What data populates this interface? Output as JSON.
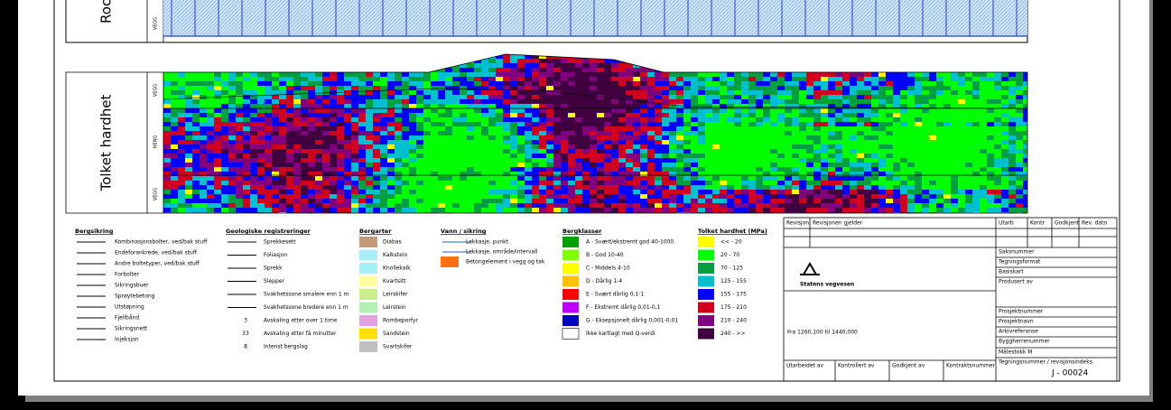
{
  "panels": [
    {
      "label": "Rock",
      "rows": [
        "VEGG"
      ]
    },
    {
      "label": "Tolket hardhet",
      "rows": [
        "VEGG",
        "HENG",
        "VEGG"
      ]
    }
  ],
  "legend": [
    {
      "title": "Bergsikring",
      "items": [
        {
          "label": "Kombinasjonsbolter, ved/bak stuff"
        },
        {
          "label": "Endeforankrede, ved/bak stuff"
        },
        {
          "label": "Andre boltetyper, ved/bak stuff"
        },
        {
          "label": "Forbolter"
        },
        {
          "label": "Sikringsbuer"
        },
        {
          "label": "Sprøytebetong"
        },
        {
          "label": "Utstøpning"
        },
        {
          "label": "Fjellbånd"
        },
        {
          "label": "Sikringsnett"
        },
        {
          "label": "Injeksjon"
        }
      ]
    },
    {
      "title": "Geologiske registreringer",
      "items": [
        {
          "label": "Sprekkesett"
        },
        {
          "label": "Foliasjon"
        },
        {
          "label": "Sprekk"
        },
        {
          "label": "Slepper"
        },
        {
          "label": "Svakhetssone smalere enn 1 m"
        },
        {
          "label": "Svakhetssone bredere enn 1 m"
        },
        {
          "label": "Avskaling etter over 1 time",
          "symbol": "3"
        },
        {
          "label": "Avskaling etter få minutter",
          "symbol": "33"
        },
        {
          "label": "Intenst bergslag",
          "symbol": "8"
        }
      ]
    },
    {
      "title": "Bergarter",
      "items": [
        {
          "label": "Diabas",
          "color": "#c49a7a"
        },
        {
          "label": "Kalkstein",
          "color": "#a8eef8"
        },
        {
          "label": "Knollekalk",
          "color": "#a8eef8"
        },
        {
          "label": "Kvartsitt",
          "color": "#ffffa0"
        },
        {
          "label": "Leirskifer",
          "color": "#c8f08c"
        },
        {
          "label": "Leirstein",
          "color": "#b4f0b4"
        },
        {
          "label": "Rombeporfyr",
          "color": "#e6a0e0"
        },
        {
          "label": "Sandstein",
          "color": "#ffe000"
        },
        {
          "label": "Svartskifer",
          "color": "#c0c0c0"
        }
      ]
    },
    {
      "title": "Vann / sikring",
      "items": [
        {
          "label": "Lekkasje, punkt"
        },
        {
          "label": "Lekkasje, område/intervall"
        },
        {
          "label": "Betongelement i vegg og tak",
          "color": "#ff7010"
        }
      ]
    },
    {
      "title": "Bergklasser",
      "items": [
        {
          "label": "A - Svært/ekstremt god 40-1000",
          "color": "#00a000"
        },
        {
          "label": "B - God 10-40",
          "color": "#80ff00"
        },
        {
          "label": "C - Middels 4-10",
          "color": "#ffff00"
        },
        {
          "label": "D - Dårlig 1-4",
          "color": "#ffc000"
        },
        {
          "label": "E - Svært dårlig 0,1-1",
          "color": "#ff0000"
        },
        {
          "label": "F - Ekstremt dårlig 0,01-0,1",
          "color": "#c000ff"
        },
        {
          "label": "G - Eksepsjonelt dårlig 0,001-0,01",
          "color": "#0000c0"
        },
        {
          "label": "Ikke kartlagt med Q-verdi",
          "color": "#ffffff"
        }
      ]
    },
    {
      "title": "Tolket hardhet (MPa)",
      "items": [
        {
          "label": "<< - 20",
          "color": "#ffff00"
        },
        {
          "label": "20 - 70",
          "color": "#00ff00"
        },
        {
          "label": "70 - 125",
          "color": "#00a040"
        },
        {
          "label": "125 - 155",
          "color": "#00c0d0"
        },
        {
          "label": "155 - 175",
          "color": "#0000ff"
        },
        {
          "label": "175 - 210",
          "color": "#d00020"
        },
        {
          "label": "210 - 240",
          "color": "#800080"
        },
        {
          "label": "240 - >>",
          "color": "#400040"
        }
      ]
    }
  ],
  "title_block": {
    "header": [
      "Revisjon",
      "Revisjonen gjelder",
      "Utarb",
      "Kontr",
      "Godkjent",
      "Rev. dato"
    ],
    "fields": [
      "Saksnummer",
      "Tegningsformat",
      "Basiskart",
      "Produsert av",
      "Prosjektnummer",
      "Prosjektnavn",
      "Arkivreferanse",
      "Byggherrenummer",
      "Målestokk M",
      "Tegningsnummer / revisjonsindeks"
    ],
    "organization": "Statens vegvesen",
    "range": "Fra 1260,100 til 1440,000",
    "signatures": [
      "Utarbeidet av",
      "Kontrollert av",
      "Godkjent av",
      "Kontraktsnummer"
    ],
    "drawing_number": "J - 00024"
  }
}
